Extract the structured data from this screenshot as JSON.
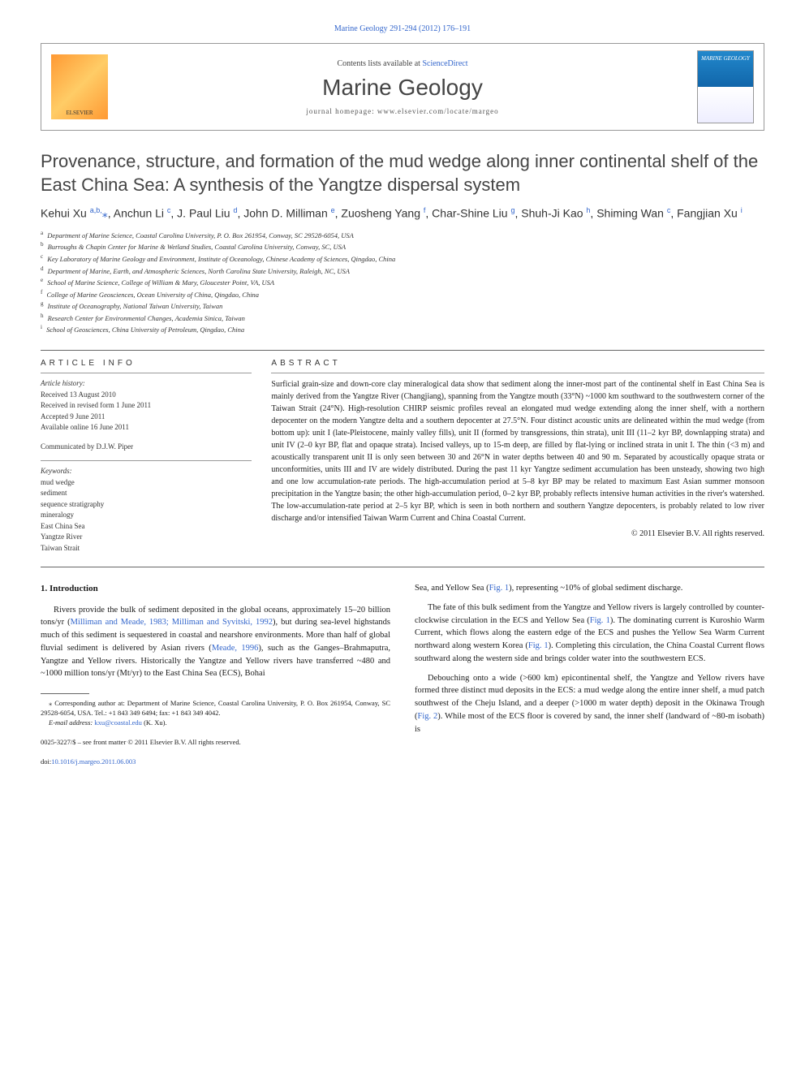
{
  "journal_ref": "Marine Geology 291-294 (2012) 176–191",
  "header": {
    "publisher": "ELSEVIER",
    "contents_prefix": "Contents lists available at ",
    "contents_link": "ScienceDirect",
    "journal_title": "Marine Geology",
    "homepage_prefix": "journal homepage: ",
    "homepage_url": "www.elsevier.com/locate/margeo"
  },
  "article_title": "Provenance, structure, and formation of the mud wedge along inner continental shelf of the East China Sea: A synthesis of the Yangtze dispersal system",
  "authors_html": "Kehui Xu <sup>a,b,</sup><span class='corr-star'>⁎</span>, Anchun Li <sup>c</sup>, J. Paul Liu <sup>d</sup>, John D. Milliman <sup>e</sup>, Zuosheng Yang <sup>f</sup>, Char-Shine Liu <sup>g</sup>, Shuh-Ji Kao <sup>h</sup>, Shiming Wan <sup>c</sup>, Fangjian Xu <sup>i</sup>",
  "affiliations": [
    {
      "sup": "a",
      "text": "Department of Marine Science, Coastal Carolina University, P. O. Box 261954, Conway, SC 29528-6054, USA"
    },
    {
      "sup": "b",
      "text": "Burroughs & Chapin Center for Marine & Wetland Studies, Coastal Carolina University, Conway, SC, USA"
    },
    {
      "sup": "c",
      "text": "Key Laboratory of Marine Geology and Environment, Institute of Oceanology, Chinese Academy of Sciences, Qingdao, China"
    },
    {
      "sup": "d",
      "text": "Department of Marine, Earth, and Atmospheric Sciences, North Carolina State University, Raleigh, NC, USA"
    },
    {
      "sup": "e",
      "text": "School of Marine Science, College of William & Mary, Gloucester Point, VA, USA"
    },
    {
      "sup": "f",
      "text": "College of Marine Geosciences, Ocean University of China, Qingdao, China"
    },
    {
      "sup": "g",
      "text": "Institute of Oceanography, National Taiwan University, Taiwan"
    },
    {
      "sup": "h",
      "text": "Research Center for Environmental Changes, Academia Sinica, Taiwan"
    },
    {
      "sup": "i",
      "text": "School of Geosciences, China University of Petroleum, Qingdao, China"
    }
  ],
  "article_info": {
    "heading": "ARTICLE INFO",
    "history_label": "Article history:",
    "received": "Received 13 August 2010",
    "revised": "Received in revised form 1 June 2011",
    "accepted": "Accepted 9 June 2011",
    "online": "Available online 16 June 2011",
    "communicated": "Communicated by D.J.W. Piper",
    "keywords_label": "Keywords:",
    "keywords": [
      "mud wedge",
      "sediment",
      "sequence stratigraphy",
      "mineralogy",
      "East China Sea",
      "Yangtze River",
      "Taiwan Strait"
    ]
  },
  "abstract": {
    "heading": "ABSTRACT",
    "text": "Surficial grain-size and down-core clay mineralogical data show that sediment along the inner-most part of the continental shelf in East China Sea is mainly derived from the Yangtze River (Changjiang), spanning from the Yangtze mouth (33°N) ~1000 km southward to the southwestern corner of the Taiwan Strait (24°N). High-resolution CHIRP seismic profiles reveal an elongated mud wedge extending along the inner shelf, with a northern depocenter on the modern Yangtze delta and a southern depocenter at 27.5°N. Four distinct acoustic units are delineated within the mud wedge (from bottom up): unit I (late-Pleistocene, mainly valley fills), unit II (formed by transgressions, thin strata), unit III (11–2 kyr BP, downlapping strata) and unit IV (2–0 kyr BP, flat and opaque strata). Incised valleys, up to 15-m deep, are filled by flat-lying or inclined strata in unit I. The thin (<3 m) and acoustically transparent unit II is only seen between 30 and 26°N in water depths between 40 and 90 m. Separated by acoustically opaque strata or unconformities, units III and IV are widely distributed. During the past 11 kyr Yangtze sediment accumulation has been unsteady, showing two high and one low accumulation-rate periods. The high-accumulation period at 5–8 kyr BP may be related to maximum East Asian summer monsoon precipitation in the Yangtze basin; the other high-accumulation period, 0–2 kyr BP, probably reflects intensive human activities in the river's watershed. The low-accumulation-rate period at 2–5 kyr BP, which is seen in both northern and southern Yangtze depocenters, is probably related to low river discharge and/or intensified Taiwan Warm Current and China Coastal Current.",
    "copyright": "© 2011 Elsevier B.V. All rights reserved."
  },
  "body": {
    "section1_heading": "1. Introduction",
    "p1": "Rivers provide the bulk of sediment deposited in the global oceans, approximately 15–20 billion tons/yr (",
    "p1_cite": "Milliman and Meade, 1983; Milliman and Syvitski, 1992",
    "p1_tail": "), but during sea-level highstands much of this sediment is sequestered in coastal and nearshore environments. More than half of global fluvial sediment is delivered by Asian rivers (",
    "p1_cite2": "Meade, 1996",
    "p1_tail2": "), such as the Ganges–Brahmaputra, Yangtze and Yellow rivers. Historically the Yangtze and Yellow rivers have transferred ~480 and ~1000 million tons/yr (Mt/yr) to the East China Sea (ECS), Bohai",
    "p2": "Sea, and Yellow Sea (",
    "p2_fig": "Fig. 1",
    "p2_tail": "), representing ~10% of global sediment discharge.",
    "p3_a": "The fate of this bulk sediment from the Yangtze and Yellow rivers is largely controlled by counter-clockwise circulation in the ECS and Yellow Sea (",
    "p3_fig1": "Fig. 1",
    "p3_b": "). The dominating current is Kuroshio Warm Current, which flows along the eastern edge of the ECS and pushes the Yellow Sea Warm Current northward along western Korea (",
    "p3_fig2": "Fig. 1",
    "p3_c": "). Completing this circulation, the China Coastal Current flows southward along the western side and brings colder water into the southwestern ECS.",
    "p4_a": "Debouching onto a wide (>600 km) epicontinental shelf, the Yangtze and Yellow rivers have formed three distinct mud deposits in the ECS: a mud wedge along the entire inner shelf, a mud patch southwest of the Cheju Island, and a deeper (>1000 m water depth) deposit in the Okinawa Trough (",
    "p4_fig": "Fig. 2",
    "p4_b": "). While most of the ECS floor is covered by sand, the inner shelf (landward of ~80-m isobath) is"
  },
  "footnote": {
    "corr_text": "⁎ Corresponding author at: Department of Marine Science, Coastal Carolina University, P. O. Box 261954, Conway, SC 29528-6054, USA. Tel.: +1 843 349 6494; fax: +1 843 349 4042.",
    "email_label": "E-mail address: ",
    "email": "kxu@coastal.edu",
    "email_suffix": " (K. Xu)."
  },
  "bottom": {
    "front_matter": "0025-3227/$ – see front matter © 2011 Elsevier B.V. All rights reserved.",
    "doi": "doi:10.1016/j.margeo.2011.06.003"
  },
  "colors": {
    "link": "#3366cc",
    "text": "#1a1a1a",
    "heading": "#444444",
    "border": "#999999"
  }
}
